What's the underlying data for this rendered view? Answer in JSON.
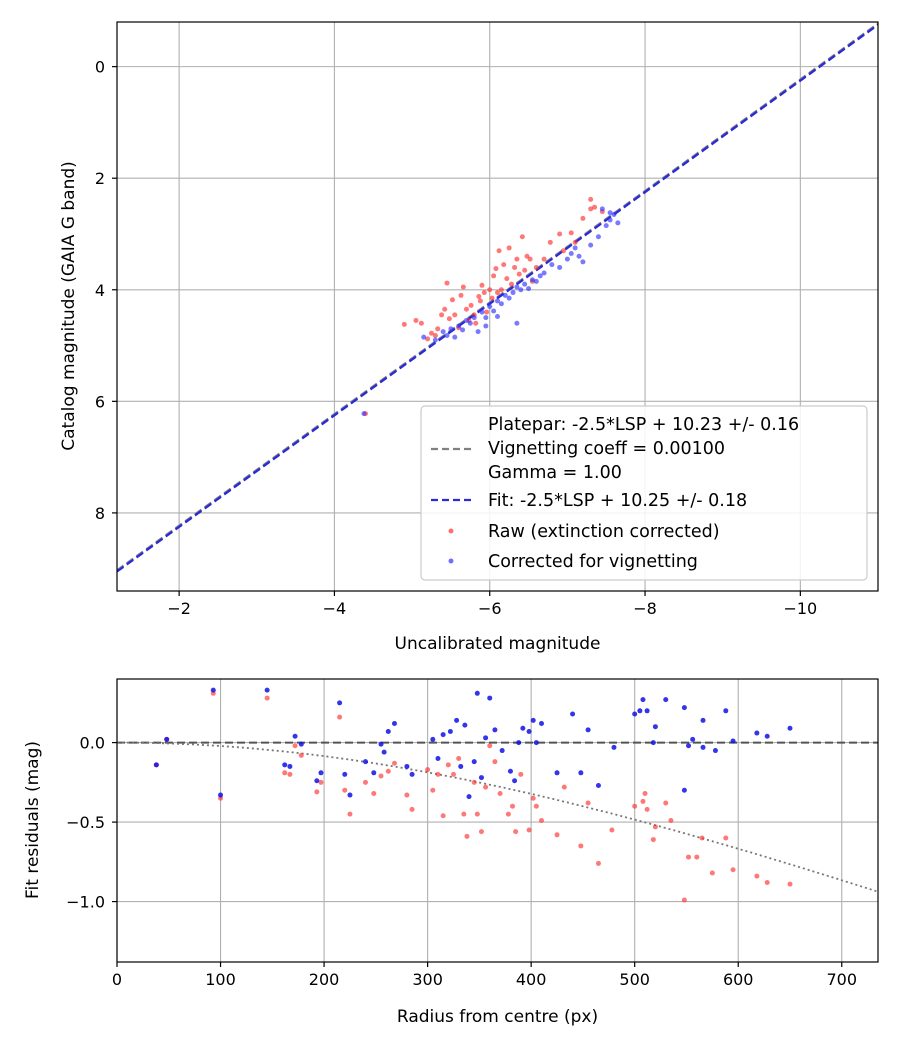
{
  "chart_data": [
    {
      "type": "scatter",
      "name": "calibration",
      "xlabel": "Uncalibrated magnitude",
      "ylabel": "Catalog magnitude (GAIA G band)",
      "xlim": [
        -1.2,
        -11.0
      ],
      "ylim": [
        9.4,
        -0.8
      ],
      "xticks": [
        -2,
        -4,
        -6,
        -8,
        -10
      ],
      "xtick_labels": [
        "−2",
        "−4",
        "−6",
        "−8",
        "−10"
      ],
      "yticks": [
        0,
        2,
        4,
        6,
        8
      ],
      "ytick_labels": [
        "0",
        "2",
        "4",
        "6",
        "8"
      ],
      "grid": true,
      "legend_position": "lower-right",
      "legend": {
        "platepar": [
          "Platepar: -2.5*LSP + 10.23 +/- 0.16",
          "Vignetting coeff = 0.00100",
          "Gamma = 1.00"
        ],
        "fit": "Fit: -2.5*LSP + 10.25 +/- 0.18",
        "raw": "Raw (extinction corrected)",
        "corrected": "Corrected for vignetting"
      },
      "lines": [
        {
          "name": "platepar",
          "style": "dashed",
          "color": "#808080",
          "slope": 1,
          "intercept": 10.23
        },
        {
          "name": "fit",
          "style": "dashed",
          "color": "#2a2ad6",
          "slope": 1,
          "intercept": 10.25
        }
      ],
      "colors": {
        "raw": "#ff3030",
        "corrected": "#3333ff"
      },
      "series": [
        {
          "name": "Raw (extinction corrected)",
          "points": [
            [
              -4.4,
              6.22
            ],
            [
              -4.9,
              4.62
            ],
            [
              -5.05,
              4.55
            ],
            [
              -5.12,
              4.6
            ],
            [
              -5.2,
              4.88
            ],
            [
              -5.25,
              4.78
            ],
            [
              -5.3,
              4.82
            ],
            [
              -5.33,
              4.7
            ],
            [
              -5.38,
              4.45
            ],
            [
              -5.42,
              4.35
            ],
            [
              -5.45,
              3.88
            ],
            [
              -5.48,
              4.52
            ],
            [
              -5.52,
              4.18
            ],
            [
              -5.55,
              4.45
            ],
            [
              -5.6,
              4.68
            ],
            [
              -5.63,
              4.1
            ],
            [
              -5.66,
              3.95
            ],
            [
              -5.7,
              4.35
            ],
            [
              -5.73,
              4.55
            ],
            [
              -5.76,
              4.28
            ],
            [
              -5.8,
              4.45
            ],
            [
              -5.82,
              4.6
            ],
            [
              -5.86,
              4.12
            ],
            [
              -5.88,
              4.2
            ],
            [
              -5.9,
              3.92
            ],
            [
              -5.93,
              4.05
            ],
            [
              -5.96,
              4.4
            ],
            [
              -6.0,
              4.0
            ],
            [
              -6.03,
              4.15
            ],
            [
              -6.05,
              3.75
            ],
            [
              -6.08,
              3.62
            ],
            [
              -6.1,
              4.05
            ],
            [
              -6.12,
              3.3
            ],
            [
              -6.15,
              4.0
            ],
            [
              -6.18,
              3.55
            ],
            [
              -6.22,
              3.8
            ],
            [
              -6.25,
              3.25
            ],
            [
              -6.28,
              3.9
            ],
            [
              -6.32,
              3.6
            ],
            [
              -6.35,
              3.45
            ],
            [
              -6.38,
              3.72
            ],
            [
              -6.42,
              3.05
            ],
            [
              -6.45,
              3.65
            ],
            [
              -6.48,
              3.4
            ],
            [
              -6.52,
              3.45
            ],
            [
              -6.55,
              3.85
            ],
            [
              -6.6,
              3.6
            ],
            [
              -6.7,
              3.45
            ],
            [
              -6.78,
              3.15
            ],
            [
              -6.9,
              3.0
            ],
            [
              -7.05,
              2.98
            ],
            [
              -7.2,
              2.72
            ],
            [
              -7.3,
              2.55
            ],
            [
              -7.35,
              2.52
            ],
            [
              -7.45,
              2.6
            ],
            [
              -7.3,
              2.38
            ],
            [
              -7.1,
              3.15
            ],
            [
              -6.95,
              3.3
            ]
          ]
        },
        {
          "name": "Corrected for vignetting",
          "points": [
            [
              -4.38,
              6.22
            ],
            [
              -5.15,
              4.85
            ],
            [
              -5.3,
              4.9
            ],
            [
              -5.4,
              4.75
            ],
            [
              -5.45,
              4.82
            ],
            [
              -5.5,
              4.7
            ],
            [
              -5.55,
              4.85
            ],
            [
              -5.6,
              4.65
            ],
            [
              -5.65,
              4.72
            ],
            [
              -5.7,
              4.55
            ],
            [
              -5.75,
              4.6
            ],
            [
              -5.8,
              4.5
            ],
            [
              -5.85,
              4.75
            ],
            [
              -5.9,
              4.4
            ],
            [
              -5.95,
              4.5
            ],
            [
              -6.0,
              4.3
            ],
            [
              -6.05,
              4.38
            ],
            [
              -6.1,
              4.2
            ],
            [
              -6.15,
              4.25
            ],
            [
              -6.2,
              4.1
            ],
            [
              -6.25,
              4.15
            ],
            [
              -6.3,
              4.05
            ],
            [
              -6.35,
              3.95
            ],
            [
              -6.4,
              4.0
            ],
            [
              -6.45,
              3.9
            ],
            [
              -6.5,
              3.98
            ],
            [
              -6.55,
              3.82
            ],
            [
              -6.6,
              3.85
            ],
            [
              -6.65,
              3.75
            ],
            [
              -6.7,
              3.7
            ],
            [
              -6.8,
              3.55
            ],
            [
              -6.9,
              3.6
            ],
            [
              -7.0,
              3.45
            ],
            [
              -7.05,
              3.35
            ],
            [
              -7.1,
              3.25
            ],
            [
              -7.15,
              3.4
            ],
            [
              -7.2,
              3.5
            ],
            [
              -7.3,
              3.2
            ],
            [
              -7.4,
              3.05
            ],
            [
              -7.5,
              2.85
            ],
            [
              -7.55,
              2.75
            ],
            [
              -7.6,
              2.65
            ],
            [
              -7.65,
              2.8
            ],
            [
              -7.45,
              2.55
            ],
            [
              -7.55,
              2.62
            ],
            [
              -6.35,
              4.6
            ],
            [
              -6.1,
              4.48
            ],
            [
              -5.95,
              4.65
            ]
          ]
        }
      ]
    },
    {
      "type": "scatter",
      "name": "residuals",
      "xlabel": "Radius from centre (px)",
      "ylabel": "Fit residuals (mag)",
      "xlim": [
        0,
        735
      ],
      "ylim": [
        -1.38,
        0.4
      ],
      "xticks": [
        0,
        100,
        200,
        300,
        400,
        500,
        600,
        700
      ],
      "xtick_labels": [
        "0",
        "100",
        "200",
        "300",
        "400",
        "500",
        "600",
        "700"
      ],
      "yticks": [
        0.0,
        -0.5,
        -1.0
      ],
      "ytick_labels": [
        "0.0",
        "−0.5",
        "−1.0"
      ],
      "grid": true,
      "colors": {
        "raw": "#ff3030",
        "corrected": "#1010e8"
      },
      "lines": [
        {
          "name": "zero",
          "style": "dashed",
          "color": "#555555",
          "value": 0
        },
        {
          "name": "vignetting model",
          "style": "dotted",
          "color": "#777777",
          "coeff": 0.001
        }
      ],
      "series": [
        {
          "name": "Raw (extinction corrected)",
          "points": [
            [
              38,
              -0.14
            ],
            [
              48,
              0.02
            ],
            [
              93,
              0.31
            ],
            [
              100,
              -0.35
            ],
            [
              145,
              0.28
            ],
            [
              162,
              -0.19
            ],
            [
              167,
              -0.2
            ],
            [
              172,
              -0.02
            ],
            [
              178,
              -0.08
            ],
            [
              193,
              -0.31
            ],
            [
              197,
              -0.25
            ],
            [
              215,
              0.16
            ],
            [
              220,
              -0.3
            ],
            [
              225,
              -0.45
            ],
            [
              240,
              -0.25
            ],
            [
              248,
              -0.32
            ],
            [
              255,
              -0.21
            ],
            [
              262,
              -0.18
            ],
            [
              268,
              -0.13
            ],
            [
              280,
              -0.33
            ],
            [
              285,
              -0.42
            ],
            [
              300,
              -0.17
            ],
            [
              305,
              -0.3
            ],
            [
              310,
              -0.2
            ],
            [
              315,
              -0.46
            ],
            [
              320,
              -0.14
            ],
            [
              325,
              -0.2
            ],
            [
              330,
              -0.1
            ],
            [
              335,
              -0.45
            ],
            [
              338,
              -0.59
            ],
            [
              345,
              -0.25
            ],
            [
              348,
              -0.45
            ],
            [
              352,
              -0.56
            ],
            [
              356,
              -0.28
            ],
            [
              360,
              -0.02
            ],
            [
              365,
              -0.12
            ],
            [
              370,
              -0.32
            ],
            [
              378,
              -0.45
            ],
            [
              382,
              -0.4
            ],
            [
              385,
              -0.56
            ],
            [
              390,
              -0.2
            ],
            [
              398,
              -0.55
            ],
            [
              402,
              -0.35
            ],
            [
              405,
              -0.4
            ],
            [
              410,
              -0.49
            ],
            [
              425,
              -0.58
            ],
            [
              432,
              -0.28
            ],
            [
              448,
              -0.65
            ],
            [
              455,
              -0.38
            ],
            [
              465,
              -0.76
            ],
            [
              478,
              -0.55
            ],
            [
              500,
              -0.4
            ],
            [
              508,
              -0.37
            ],
            [
              510,
              -0.32
            ],
            [
              512,
              -0.42
            ],
            [
              518,
              -0.61
            ],
            [
              520,
              -0.53
            ],
            [
              530,
              -0.38
            ],
            [
              535,
              -0.49
            ],
            [
              548,
              -0.99
            ],
            [
              552,
              -0.72
            ],
            [
              560,
              -0.72
            ],
            [
              565,
              -0.6
            ],
            [
              575,
              -0.82
            ],
            [
              588,
              -0.6
            ],
            [
              595,
              -0.8
            ],
            [
              618,
              -0.84
            ],
            [
              628,
              -0.88
            ],
            [
              650,
              -0.89
            ]
          ]
        },
        {
          "name": "Corrected for vignetting",
          "points": [
            [
              38,
              -0.14
            ],
            [
              48,
              0.02
            ],
            [
              93,
              0.33
            ],
            [
              100,
              -0.33
            ],
            [
              145,
              0.33
            ],
            [
              162,
              -0.14
            ],
            [
              167,
              -0.15
            ],
            [
              172,
              0.04
            ],
            [
              178,
              -0.01
            ],
            [
              193,
              -0.24
            ],
            [
              197,
              -0.19
            ],
            [
              215,
              0.25
            ],
            [
              220,
              -0.2
            ],
            [
              225,
              -0.33
            ],
            [
              240,
              -0.12
            ],
            [
              248,
              -0.19
            ],
            [
              255,
              -0.01
            ],
            [
              258,
              -0.06
            ],
            [
              262,
              0.07
            ],
            [
              268,
              0.12
            ],
            [
              280,
              -0.15
            ],
            [
              285,
              -0.2
            ],
            [
              305,
              0.02
            ],
            [
              310,
              -0.1
            ],
            [
              315,
              0.05
            ],
            [
              322,
              0.07
            ],
            [
              328,
              0.14
            ],
            [
              332,
              -0.15
            ],
            [
              336,
              0.11
            ],
            [
              340,
              -0.34
            ],
            [
              345,
              -0.12
            ],
            [
              348,
              0.31
            ],
            [
              352,
              -0.22
            ],
            [
              356,
              0.03
            ],
            [
              360,
              0.28
            ],
            [
              365,
              0.08
            ],
            [
              372,
              -0.05
            ],
            [
              380,
              -0.18
            ],
            [
              384,
              -0.24
            ],
            [
              388,
              0.0
            ],
            [
              392,
              0.09
            ],
            [
              398,
              0.07
            ],
            [
              402,
              0.14
            ],
            [
              405,
              0.0
            ],
            [
              410,
              0.12
            ],
            [
              425,
              -0.19
            ],
            [
              440,
              0.18
            ],
            [
              448,
              -0.19
            ],
            [
              455,
              0.08
            ],
            [
              465,
              -0.27
            ],
            [
              480,
              -0.03
            ],
            [
              500,
              0.18
            ],
            [
              505,
              0.2
            ],
            [
              508,
              0.27
            ],
            [
              512,
              0.2
            ],
            [
              518,
              0.0
            ],
            [
              520,
              0.1
            ],
            [
              530,
              0.27
            ],
            [
              548,
              0.22
            ],
            [
              552,
              -0.02
            ],
            [
              556,
              0.02
            ],
            [
              566,
              0.14
            ],
            [
              578,
              -0.05
            ],
            [
              588,
              0.2
            ],
            [
              595,
              0.01
            ],
            [
              618,
              0.06
            ],
            [
              628,
              0.04
            ],
            [
              650,
              0.09
            ],
            [
              548,
              -0.3
            ],
            [
              566,
              -0.03
            ]
          ]
        }
      ]
    }
  ]
}
